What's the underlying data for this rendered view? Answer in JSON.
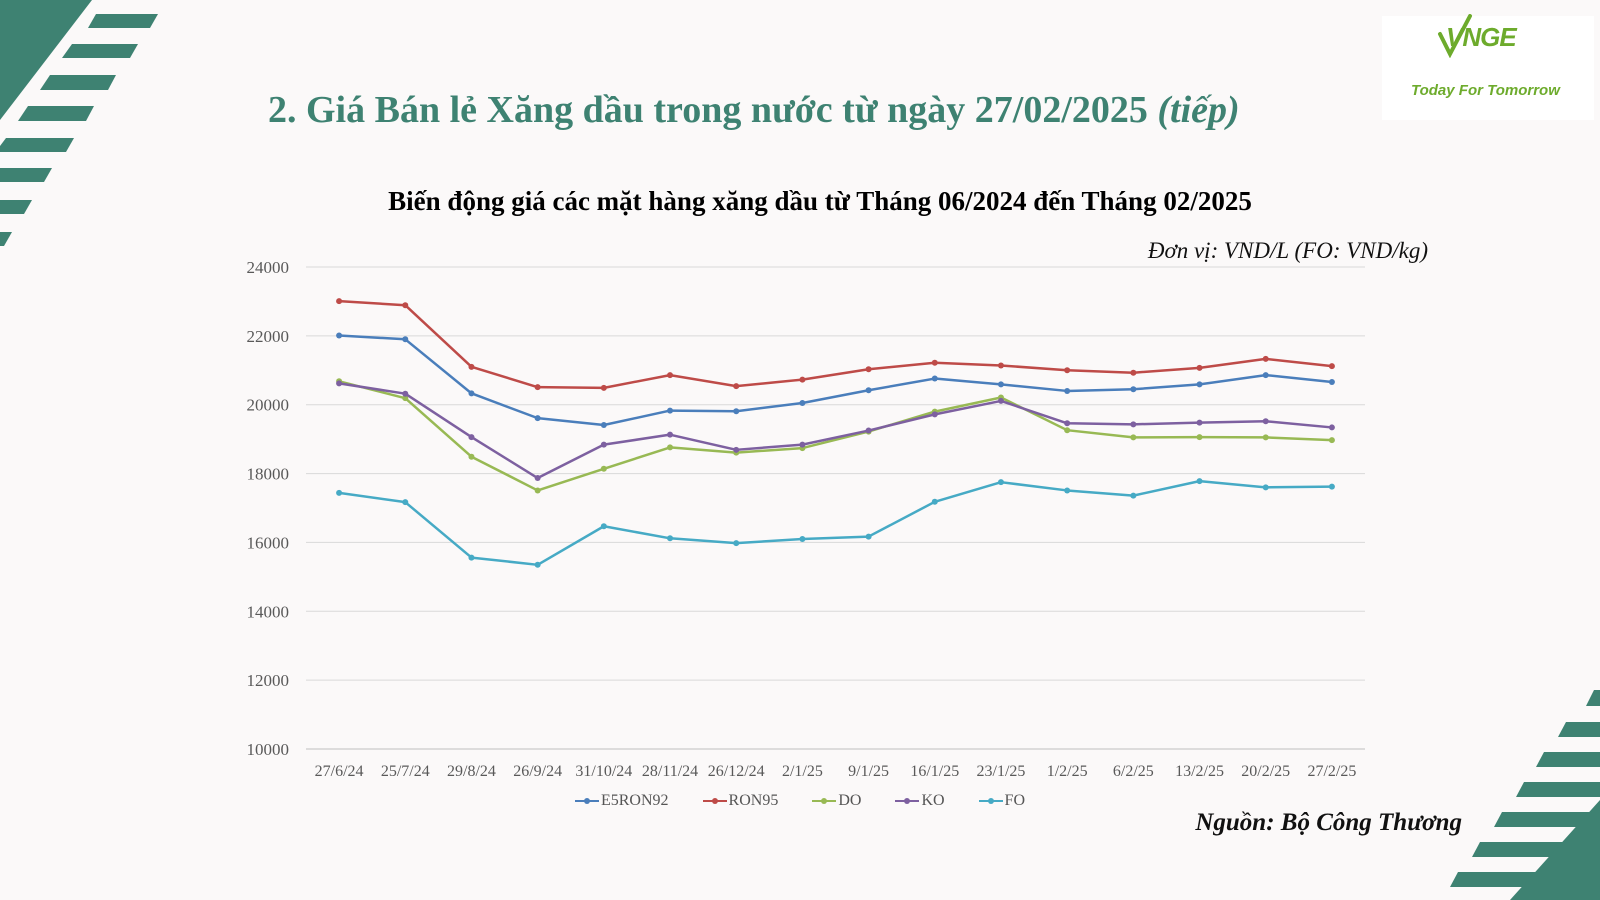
{
  "header": {
    "title_main": "2. Giá Bán lẻ Xăng dầu trong nước từ ngày 27/02/2025 ",
    "title_italic": "(tiếp)"
  },
  "logo": {
    "mark": "VNGE",
    "tagline": "Today For Tomorrow"
  },
  "unit_note": "Đơn vị: VND/L (FO: VND/kg)",
  "source_note": "Nguồn: Bộ Công Thương",
  "colors": {
    "accent": "#3e8272",
    "E5RON92": "#4a7ebb",
    "RON95": "#be4b48",
    "DO": "#98b954",
    "KO": "#7d60a0",
    "FO": "#46aac5"
  },
  "chart_data": {
    "type": "line",
    "title": "Biến động giá các mặt hàng xăng dầu từ Tháng 06/2024 đến Tháng 02/2025",
    "xlabel": "",
    "ylabel": "",
    "ylim": [
      10000,
      24000
    ],
    "yticks": [
      10000,
      12000,
      14000,
      16000,
      18000,
      20000,
      22000,
      24000
    ],
    "grid": true,
    "legend_position": "bottom",
    "categories": [
      "27/6/24",
      "25/7/24",
      "29/8/24",
      "26/9/24",
      "31/10/24",
      "28/11/24",
      "26/12/24",
      "2/1/25",
      "9/1/25",
      "16/1/25",
      "23/1/25",
      "1/2/25",
      "6/2/25",
      "13/2/25",
      "20/2/25",
      "27/2/25"
    ],
    "series": [
      {
        "name": "E5RON92",
        "values": [
          22010,
          21900,
          20330,
          19610,
          19410,
          19830,
          19810,
          20050,
          20420,
          20760,
          20590,
          20400,
          20450,
          20590,
          20860,
          20660
        ]
      },
      {
        "name": "RON95",
        "values": [
          23010,
          22890,
          21100,
          20510,
          20490,
          20860,
          20540,
          20730,
          21030,
          21220,
          21140,
          21000,
          20930,
          21070,
          21330,
          21120
        ]
      },
      {
        "name": "DO",
        "values": [
          20680,
          20190,
          18490,
          17510,
          18140,
          18760,
          18610,
          18740,
          19220,
          19800,
          20210,
          19260,
          19050,
          19060,
          19050,
          18970
        ]
      },
      {
        "name": "KO",
        "values": [
          20620,
          20320,
          19060,
          17870,
          18840,
          19130,
          18690,
          18840,
          19250,
          19720,
          20110,
          19460,
          19430,
          19480,
          19520,
          19340
        ]
      },
      {
        "name": "FO",
        "values": [
          17440,
          17170,
          15560,
          15350,
          16470,
          16120,
          15980,
          16100,
          16170,
          17180,
          17750,
          17510,
          17360,
          17780,
          17600,
          17620
        ]
      }
    ]
  }
}
